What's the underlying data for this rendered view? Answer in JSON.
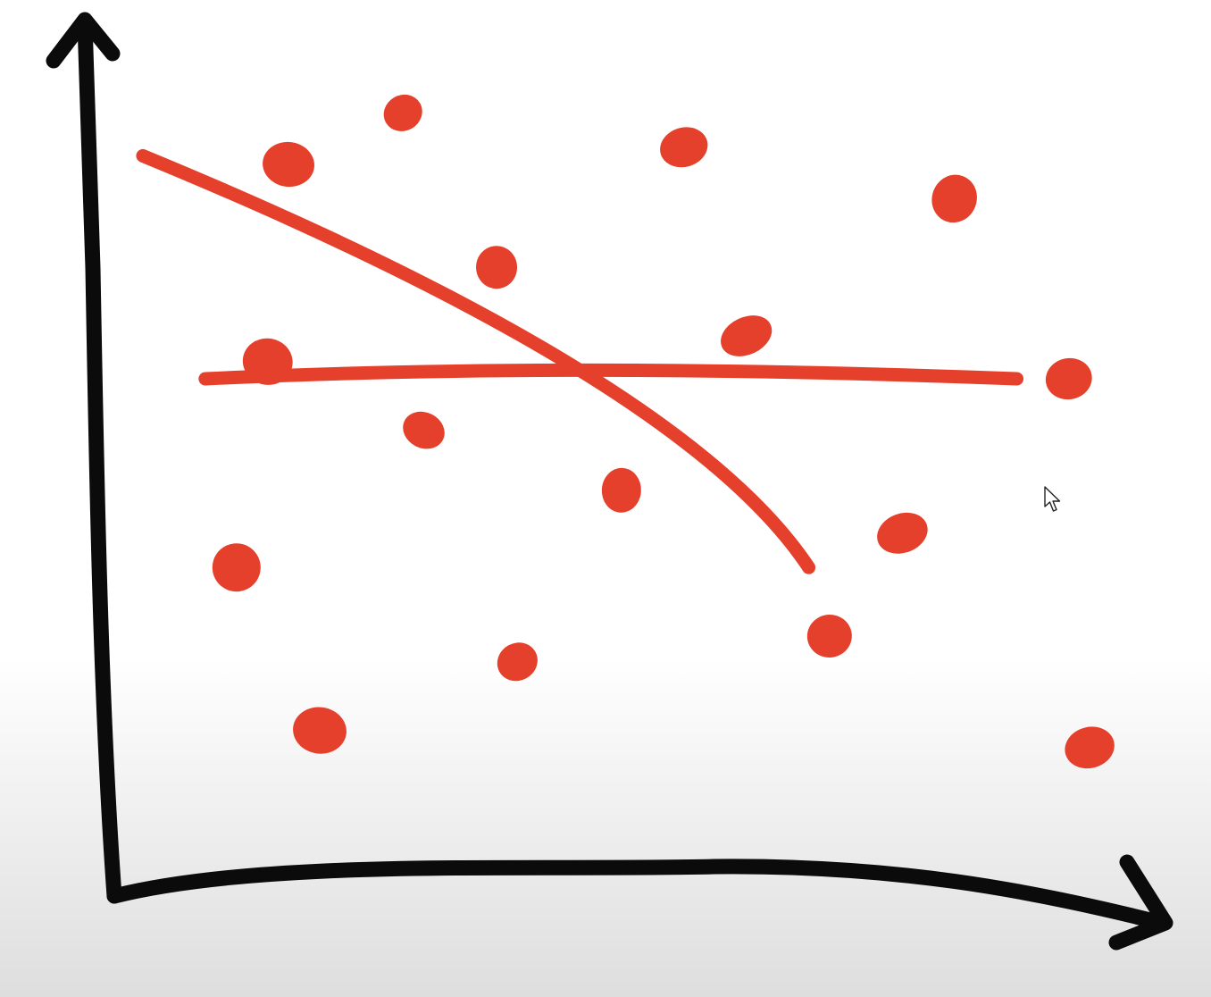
{
  "colors": {
    "ink_axis": "#0b0b0b",
    "ink_data": "#e5402c",
    "background": "#ffffff"
  },
  "chart_data": {
    "type": "scatter",
    "title": "",
    "xlabel": "",
    "ylabel": "",
    "xlim": [
      0,
      100
    ],
    "ylim": [
      0,
      100
    ],
    "grid": false,
    "legend": "none",
    "points": [
      {
        "x": 28,
        "y": 91
      },
      {
        "x": 17,
        "y": 85
      },
      {
        "x": 55,
        "y": 87
      },
      {
        "x": 81,
        "y": 81
      },
      {
        "x": 37,
        "y": 73
      },
      {
        "x": 61,
        "y": 65
      },
      {
        "x": 15,
        "y": 62
      },
      {
        "x": 92,
        "y": 60
      },
      {
        "x": 30,
        "y": 54
      },
      {
        "x": 49,
        "y": 47
      },
      {
        "x": 76,
        "y": 42
      },
      {
        "x": 12,
        "y": 38
      },
      {
        "x": 69,
        "y": 30
      },
      {
        "x": 39,
        "y": 27
      },
      {
        "x": 20,
        "y": 19
      },
      {
        "x": 94,
        "y": 17
      }
    ],
    "lines": [
      {
        "x": [
          3,
          45,
          67
        ],
        "y": [
          86,
          61,
          38
        ]
      },
      {
        "x": [
          9,
          46,
          87
        ],
        "y": [
          60,
          61,
          60
        ]
      }
    ]
  },
  "cursor": {
    "icon": "pointer-cursor-icon"
  }
}
